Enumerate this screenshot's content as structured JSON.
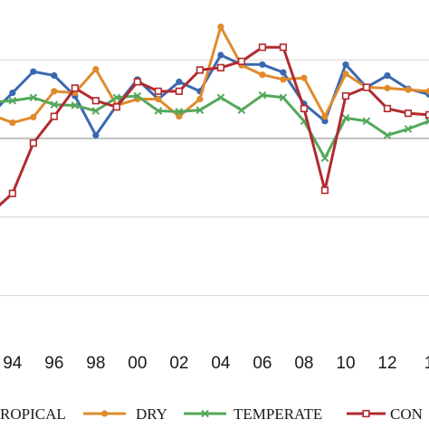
{
  "chart_data": {
    "type": "line",
    "x": [
      1993,
      1994,
      1995,
      1996,
      1997,
      1998,
      1999,
      2000,
      2001,
      2002,
      2003,
      2004,
      2005,
      2006,
      2007,
      2008,
      2009,
      2010,
      2011,
      2012,
      2013,
      2014
    ],
    "xticks": [
      {
        "value": 1994,
        "label": "94"
      },
      {
        "value": 1996,
        "label": "96"
      },
      {
        "value": 1998,
        "label": "98"
      },
      {
        "value": 2000,
        "label": "00"
      },
      {
        "value": 2002,
        "label": "02"
      },
      {
        "value": 2004,
        "label": "04"
      },
      {
        "value": 2006,
        "label": "06"
      },
      {
        "value": 2008,
        "label": "08"
      },
      {
        "value": 2010,
        "label": "10"
      },
      {
        "value": 2012,
        "label": "12"
      },
      {
        "value": 2014,
        "label": "1"
      }
    ],
    "xlim": [
      1993.4,
      2014.0
    ],
    "ylim": [
      -0.25,
      0.16
    ],
    "ygrid": [
      -0.2,
      -0.1,
      0.0,
      0.1
    ],
    "zero_line": 0.0,
    "grid": true,
    "legend_position": "bottom",
    "series": [
      {
        "name": "ROPICAL",
        "color": "#3a68b0",
        "marker": "circle",
        "values": [
          0.032,
          0.058,
          0.085,
          0.08,
          0.054,
          0.004,
          0.042,
          0.075,
          0.05,
          0.072,
          0.06,
          0.106,
          0.094,
          0.094,
          0.084,
          0.044,
          0.022,
          0.094,
          0.065,
          0.08,
          0.063,
          0.056
        ]
      },
      {
        "name": "DRY",
        "color": "#e08b2c",
        "marker": "circle",
        "values": [
          0.03,
          0.02,
          0.027,
          0.06,
          0.058,
          0.088,
          0.042,
          0.05,
          0.05,
          0.028,
          0.05,
          0.142,
          0.093,
          0.081,
          0.075,
          0.077,
          0.028,
          0.082,
          0.065,
          0.064,
          0.062,
          0.06
        ]
      },
      {
        "name": "TEMPERATE",
        "color": "#55a85a",
        "marker": "x",
        "values": [
          0.046,
          0.048,
          0.052,
          0.043,
          0.042,
          0.035,
          0.052,
          0.054,
          0.035,
          0.034,
          0.036,
          0.052,
          0.036,
          0.055,
          0.052,
          0.022,
          -0.025,
          0.026,
          0.022,
          0.004,
          0.012,
          0.022
        ]
      },
      {
        "name": "CON",
        "color": "#b22a2f",
        "marker": "square",
        "values": [
          -0.094,
          -0.07,
          -0.006,
          0.028,
          0.064,
          0.048,
          0.04,
          0.072,
          0.06,
          0.06,
          0.087,
          0.09,
          0.098,
          0.116,
          0.116,
          0.038,
          -0.066,
          0.054,
          0.065,
          0.038,
          0.032,
          0.03
        ]
      }
    ],
    "legend": [
      {
        "series": 0,
        "label": "ROPICAL"
      },
      {
        "series": 1,
        "label": "DRY"
      },
      {
        "series": 2,
        "label": "TEMPERATE"
      },
      {
        "series": 3,
        "label": "CON"
      }
    ]
  }
}
